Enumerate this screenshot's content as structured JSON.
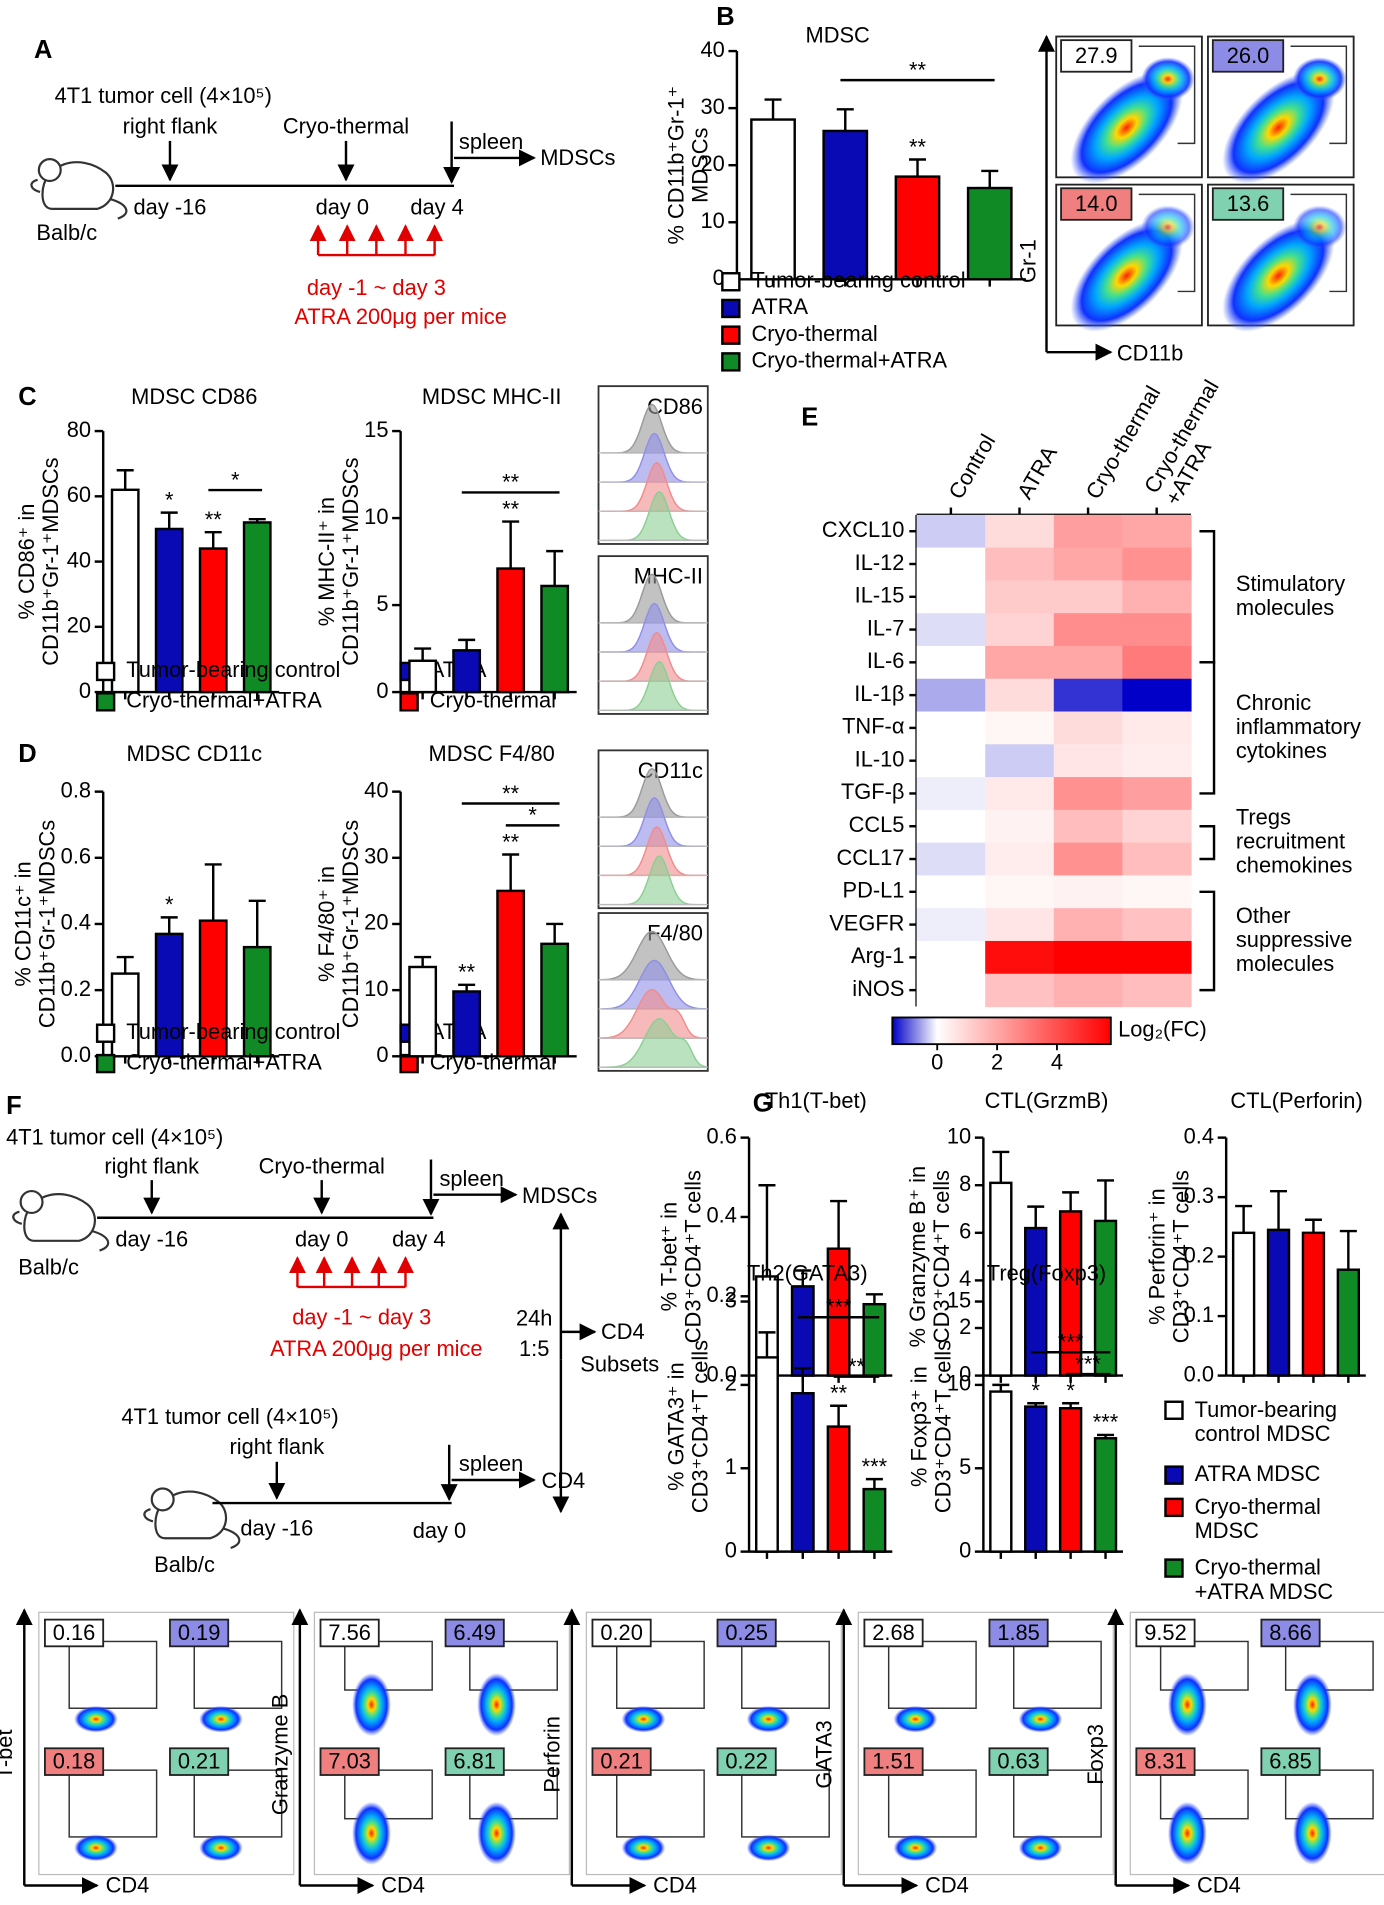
{
  "panel_labels": [
    "A",
    "B",
    "C",
    "D",
    "E",
    "F",
    "G"
  ],
  "diagram_a": {
    "cell": "4T1 tumor cell (4×10⁵)",
    "site": "right flank",
    "treatment": "Cryo-thermal",
    "organ": "spleen",
    "output": "MDSCs",
    "day1": "day -16",
    "day2": "day 0",
    "day3": "day 4",
    "mouse": "Balb/c",
    "range": "day -1 ~ day 3",
    "drug": "ATRA 200μg per mice"
  },
  "diagram_f": {
    "cell": "4T1 tumor cell (4×10⁵)",
    "site": "right flank",
    "treatment": "Cryo-thermal",
    "organ": "spleen",
    "output": "MDSCs",
    "day1": "day -16",
    "day2": "day 0",
    "day3": "day 4",
    "mouse": "Balb/c",
    "range": "day -1 ~ day 3",
    "drug": "ATRA 200μg per mice",
    "time": "24h",
    "ratio": "1:5",
    "target": "CD4",
    "target2": "Subsets",
    "cell2": "4T1 tumor cell (4×10⁵)",
    "site2": "right flank",
    "organ2": "spleen",
    "output2": "CD4",
    "day4": "day -16",
    "day5": "day 0",
    "mouse2": "Balb/c"
  },
  "chart_data": [
    {
      "type": "bar",
      "title": "MDSC",
      "y_label": "% CD11b⁺Gr-1⁺\nMDSCs",
      "categories": [
        "Tumor-bearing control",
        "ATRA",
        "Cryo-thermal",
        "Cryo-thermal+ATRA"
      ],
      "colors": [
        "#ffffff",
        "#0a0ab4",
        "#ff0000",
        "#0f8a25"
      ],
      "values": [
        28,
        26,
        18,
        16
      ],
      "errors": [
        3.5,
        3.8,
        3,
        3
      ],
      "ylim": [
        0,
        40
      ],
      "yticks": [
        0,
        10,
        20,
        30,
        40
      ],
      "stars": [
        {
          "bar": 2,
          "label": "**"
        }
      ],
      "brackets": [
        {
          "from": 1,
          "to": 3,
          "label": "**"
        }
      ]
    },
    {
      "type": "bar",
      "title": "MDSC CD86",
      "y_label": "% CD86⁺ in\nCD11b⁺Gr-1⁺MDSCs",
      "categories": [
        "Tumor-bearing control",
        "ATRA",
        "Cryo-thermal",
        "Cryo-thermal+ATRA"
      ],
      "colors": [
        "#ffffff",
        "#0a0ab4",
        "#ff0000",
        "#0f8a25"
      ],
      "values": [
        62,
        50,
        44,
        52
      ],
      "errors": [
        6,
        5,
        5,
        1
      ],
      "ylim": [
        0,
        80
      ],
      "yticks": [
        0,
        20,
        40,
        60,
        80
      ],
      "stars": [
        {
          "bar": 1,
          "label": "*"
        },
        {
          "bar": 2,
          "label": "**"
        }
      ],
      "brackets": [
        {
          "from": 2,
          "to": 3,
          "label": "*"
        }
      ]
    },
    {
      "type": "bar",
      "title": "MDSC MHC-II",
      "y_label": "% MHC-II⁺ in\nCD11b⁺Gr-1⁺MDSCs",
      "colors": [
        "#ffffff",
        "#0a0ab4",
        "#ff0000",
        "#0f8a25"
      ],
      "values": [
        1.8,
        2.4,
        7.1,
        6.1
      ],
      "errors": [
        0.7,
        0.6,
        2.7,
        2
      ],
      "ylim": [
        0,
        15
      ],
      "yticks": [
        0,
        5,
        10,
        15
      ],
      "stars": [
        {
          "bar": 2,
          "label": "**"
        }
      ],
      "brackets": [
        {
          "from": 1,
          "to": 3,
          "label": "**"
        }
      ]
    },
    {
      "type": "bar",
      "title": "MDSC CD11c",
      "y_label": "% CD11c⁺ in\nCD11b⁺Gr-1⁺MDSCs",
      "categories": [
        "Tumor-bearing control",
        "ATRA",
        "Cryo-thermal",
        "Cryo-thermal+ATRA"
      ],
      "colors": [
        "#ffffff",
        "#0a0ab4",
        "#ff0000",
        "#0f8a25"
      ],
      "values": [
        0.25,
        0.37,
        0.41,
        0.33
      ],
      "errors": [
        0.05,
        0.05,
        0.17,
        0.14
      ],
      "ylim": [
        0,
        0.8
      ],
      "yticks": [
        {
          "value": 0,
          "label": "0.0"
        },
        0.2,
        0.4,
        0.6,
        0.8
      ],
      "stars": [
        {
          "bar": 1,
          "label": "*"
        }
      ],
      "brackets": []
    },
    {
      "type": "bar",
      "title": "MDSC F4/80",
      "y_label": "% F4/80⁺ in\nCD11b⁺Gr-1⁺MDSCs",
      "colors": [
        "#ffffff",
        "#0a0ab4",
        "#ff0000",
        "#0f8a25"
      ],
      "values": [
        13.5,
        9.8,
        25,
        17
      ],
      "errors": [
        1.5,
        1,
        5.5,
        3
      ],
      "ylim": [
        0,
        40
      ],
      "yticks": [
        0,
        10,
        20,
        30,
        40
      ],
      "stars": [
        {
          "bar": 1,
          "label": "**"
        },
        {
          "bar": 2,
          "label": "**"
        }
      ],
      "brackets": [
        {
          "from": 2,
          "to": 3,
          "label": "*"
        },
        {
          "from": 1,
          "to": 3,
          "label": "**"
        }
      ]
    },
    {
      "type": "bar",
      "title": "Th1(T-bet)",
      "y_label": "% T-bet⁺ in\nCD3⁺CD4⁺T cells",
      "categories": [
        "Tumor-bearing\ncontrol MDSC",
        "ATRA MDSC",
        "Cryo-thermal\nMDSC",
        "Cryo-thermal\n+ATRA MDSC"
      ],
      "colors": [
        "#ffffff",
        "#0a0ab4",
        "#ff0000",
        "#0f8a25"
      ],
      "values": [
        0.25,
        0.225,
        0.32,
        0.18
      ],
      "errors": [
        0.23,
        0.04,
        0.12,
        0.025
      ],
      "ylim": [
        0,
        0.6
      ],
      "yticks": [
        {
          "value": 0,
          "label": "0.0"
        },
        0.2,
        0.4,
        0.6
      ],
      "stars": [],
      "brackets": []
    },
    {
      "type": "bar",
      "title": "CTL(GrzmB)",
      "y_label": "% Granzyme B⁺ in\nCD3⁺CD4⁺T cells",
      "colors": [
        "#ffffff",
        "#0a0ab4",
        "#ff0000",
        "#0f8a25"
      ],
      "values": [
        8.1,
        6.2,
        6.9,
        6.5
      ],
      "errors": [
        1.3,
        0.9,
        0.8,
        1.7
      ],
      "ylim": [
        0,
        10
      ],
      "yticks": [
        0,
        2,
        4,
        6,
        8,
        10
      ],
      "stars": [],
      "brackets": []
    },
    {
      "type": "bar",
      "title": "CTL(Perforin)",
      "y_label": "% Perforin⁺ in\nCD3⁺CD4⁺T cells",
      "colors": [
        "#ffffff",
        "#0a0ab4",
        "#ff0000",
        "#0f8a25"
      ],
      "values": [
        0.24,
        0.245,
        0.24,
        0.178
      ],
      "errors": [
        0.045,
        0.065,
        0.022,
        0.065
      ],
      "ylim": [
        0,
        0.4
      ],
      "yticks": [
        {
          "value": 0,
          "label": "0.0"
        },
        0.1,
        0.2,
        0.3,
        0.4
      ],
      "stars": [],
      "brackets": []
    },
    {
      "type": "bar",
      "title": "Th2(GATA3)",
      "y_label": "% GATA3⁺ in\nCD3⁺CD4⁺T cells",
      "colors": [
        "#ffffff",
        "#0a0ab4",
        "#ff0000",
        "#0f8a25"
      ],
      "values": [
        2.33,
        1.9,
        1.5,
        0.75
      ],
      "errors": [
        0.3,
        0.3,
        0.25,
        0.12
      ],
      "ylim": [
        0,
        3
      ],
      "yticks": [
        0,
        1,
        2,
        3
      ],
      "stars": [
        {
          "bar": 2,
          "label": "**"
        },
        {
          "bar": 3,
          "label": "***"
        }
      ],
      "brackets": [
        {
          "from": 2,
          "to": 3,
          "label": "**"
        },
        {
          "from": 1,
          "to": 3,
          "label": "***"
        }
      ]
    },
    {
      "type": "bar",
      "title": "Treg(Foxp3)",
      "y_label": "% Foxp3⁺ in\nCD3⁺CD4⁺T cells",
      "colors": [
        "#ffffff",
        "#0a0ab4",
        "#ff0000",
        "#0f8a25"
      ],
      "values": [
        9.6,
        8.7,
        8.6,
        6.8
      ],
      "errors": [
        0.4,
        0.2,
        0.3,
        0.2
      ],
      "ylim": [
        0,
        15
      ],
      "yticks": [
        0,
        5,
        10,
        15
      ],
      "stars": [
        {
          "bar": 1,
          "label": "*"
        },
        {
          "bar": 2,
          "label": "*"
        },
        {
          "bar": 3,
          "label": "***"
        }
      ],
      "brackets": [
        {
          "from": 2,
          "to": 3,
          "label": "***"
        },
        {
          "from": 1,
          "to": 3,
          "label": "***"
        }
      ]
    },
    {
      "type": "heatmap",
      "columns": [
        "Control",
        "ATRA",
        "Cryo-thermal",
        "Cryo-thermal\n+ATRA"
      ],
      "rows": [
        "CXCL10",
        "IL-12",
        "IL-15",
        "IL-7",
        "IL-6",
        "IL-1β",
        "TNF-α",
        "IL-10",
        "TGF-β",
        "CCL5",
        "CCL17",
        "PD-L1",
        "VEGFR",
        "Arg-1",
        "iNOS"
      ],
      "values": [
        [
          -0.3,
          0.8,
          2.2,
          2.0
        ],
        [
          0,
          1.5,
          2.0,
          2.5
        ],
        [
          0,
          1.2,
          1.2,
          1.8
        ],
        [
          -0.2,
          1.0,
          2.6,
          2.6
        ],
        [
          0,
          2.0,
          2.0,
          3.0
        ],
        [
          -0.5,
          0.8,
          -1.2,
          -1.5
        ],
        [
          0,
          0.2,
          0.8,
          0.5
        ],
        [
          0,
          -0.3,
          0.6,
          0.4
        ],
        [
          -0.1,
          0.5,
          2.5,
          2.2
        ],
        [
          0,
          0.3,
          1.5,
          1.0
        ],
        [
          -0.2,
          0.4,
          2.5,
          1.5
        ],
        [
          0,
          0.2,
          0.3,
          0.2
        ],
        [
          -0.1,
          0.6,
          1.8,
          1.4
        ],
        [
          0,
          5.5,
          5.8,
          5.8
        ],
        [
          0,
          1.4,
          1.8,
          1.5
        ]
      ],
      "clim": [
        -1.5,
        5.8
      ],
      "cticks": [
        0,
        2,
        4
      ],
      "colorbar_label": "Log₂(FC)",
      "colors": {
        "low": "#0000c8",
        "mid": "#ffffff",
        "high": "#ff0000"
      },
      "groups": [
        {
          "label": "Stimulatory\nmolecules",
          "from": 0,
          "to": 4
        },
        {
          "label": "Chronic\ninflammatory\ncytokines",
          "from": 4,
          "to": 8
        },
        {
          "label": "Tregs\nrecruitment\nchemokines",
          "from": 9,
          "to": 10
        },
        {
          "label": "Other\nsuppressive\nmolecules",
          "from": 11,
          "to": 14
        }
      ]
    }
  ],
  "histograms": {
    "labels": [
      "CD86",
      "MHC-II",
      "CD11c",
      "F4/80"
    ],
    "colors": [
      "#9a9a9a",
      "#8f8fe8",
      "#f28c8c",
      "#8ccf94"
    ]
  },
  "flow_b": {
    "y_label": "Gr-1",
    "x_label": "CD11b",
    "values": [
      27.9,
      {
        "value": 26,
        "label": "26.0"
      },
      {
        "value": 14,
        "label": "14.0"
      },
      13.6
    ],
    "colors": [
      "#ffffff",
      "#8c8ce6",
      "#f08080",
      "#7fd1b0"
    ]
  },
  "flow_g": {
    "x_label": "CD4",
    "colors": [
      "#ffffff",
      "#8c8ce6",
      "#f08080",
      "#7fd1b0"
    ],
    "panels": [
      {
        "y_label": "T-bet",
        "values": [
          0.16,
          0.19,
          0.18,
          0.21
        ]
      },
      {
        "y_label": "Granzyme B",
        "values": [
          7.56,
          6.49,
          7.03,
          6.81
        ]
      },
      {
        "y_label": "Perforin",
        "values": [
          {
            "value": 0.2,
            "label": "0.20"
          },
          0.25,
          0.21,
          0.22
        ]
      },
      {
        "y_label": "GATA3",
        "values": [
          2.68,
          1.85,
          1.51,
          0.63
        ]
      },
      {
        "y_label": "Foxp3",
        "values": [
          9.52,
          8.66,
          8.31,
          6.85
        ]
      }
    ]
  }
}
